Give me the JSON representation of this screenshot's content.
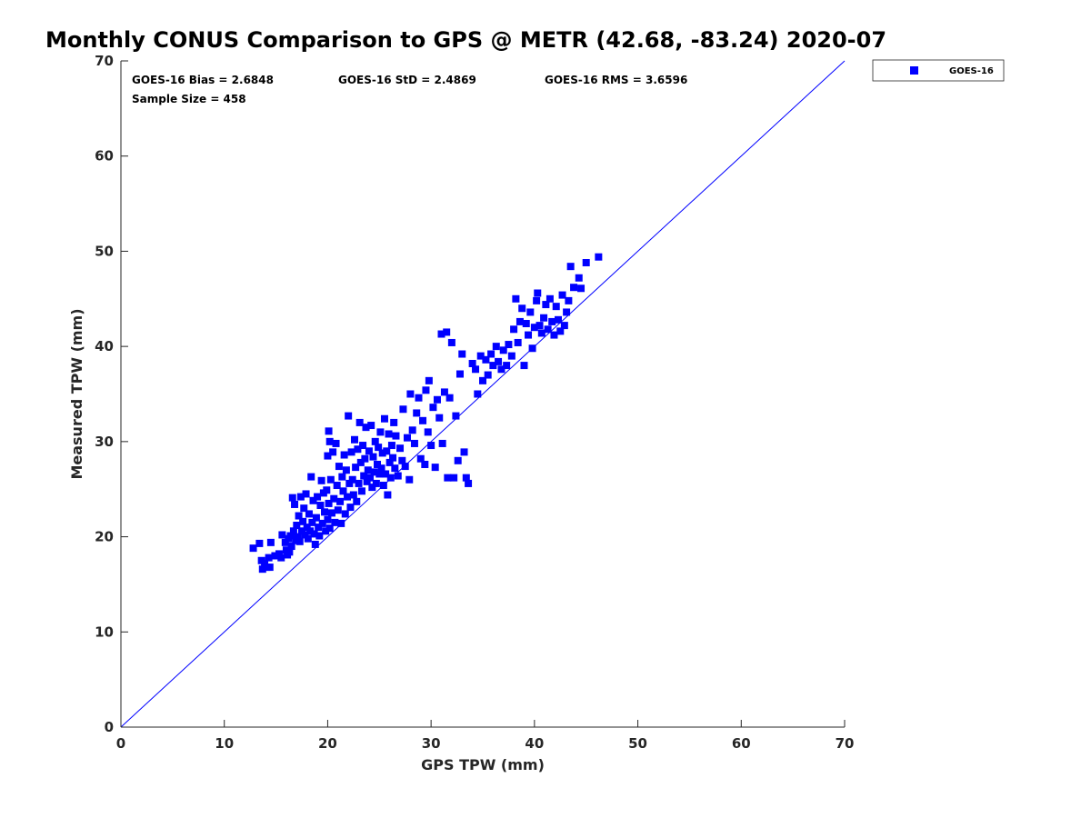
{
  "chart_data": {
    "type": "scatter",
    "title": "Monthly CONUS Comparison to GPS @ METR (42.68, -83.24) 2020-07",
    "xlabel": "GPS TPW (mm)",
    "ylabel": "Measured TPW (mm)",
    "xlim": [
      0,
      70
    ],
    "ylim": [
      0,
      70
    ],
    "xticks": [
      0,
      10,
      20,
      30,
      40,
      50,
      60,
      70
    ],
    "yticks": [
      0,
      10,
      20,
      30,
      40,
      50,
      60,
      70
    ],
    "grid": false,
    "legend_position": "outside-top-right",
    "reference_line": {
      "x": [
        0,
        70
      ],
      "y": [
        0,
        70
      ],
      "color": "#0000ff"
    },
    "annotations": {
      "bias": "GOES-16 Bias = 2.6848",
      "std": "GOES-16 StD = 2.4869",
      "rms": "GOES-16 RMS = 3.6596",
      "sample": "Sample Size = 458"
    },
    "series": [
      {
        "name": "GOES-16",
        "color": "#0000ff",
        "marker": "square",
        "points": [
          [
            12.8,
            18.8
          ],
          [
            13.4,
            19.3
          ],
          [
            13.6,
            17.5
          ],
          [
            13.7,
            16.6
          ],
          [
            13.9,
            17.2
          ],
          [
            14.1,
            16.8
          ],
          [
            14.3,
            17.8
          ],
          [
            14.5,
            19.4
          ],
          [
            14.4,
            16.8
          ],
          [
            14.9,
            18.0
          ],
          [
            15.3,
            18.2
          ],
          [
            15.5,
            17.8
          ],
          [
            15.6,
            20.2
          ],
          [
            15.9,
            19.4
          ],
          [
            16.0,
            18.6
          ],
          [
            16.1,
            18.1
          ],
          [
            16.2,
            19.8
          ],
          [
            16.3,
            18.4
          ],
          [
            16.4,
            20.1
          ],
          [
            16.5,
            19.0
          ],
          [
            16.6,
            24.1
          ],
          [
            16.7,
            20.6
          ],
          [
            16.8,
            23.4
          ],
          [
            16.9,
            19.6
          ],
          [
            17.0,
            21.2
          ],
          [
            17.1,
            20.0
          ],
          [
            17.2,
            22.2
          ],
          [
            17.3,
            19.5
          ],
          [
            17.4,
            24.2
          ],
          [
            17.5,
            20.6
          ],
          [
            17.6,
            21.6
          ],
          [
            17.7,
            23.0
          ],
          [
            17.8,
            20.2
          ],
          [
            17.9,
            24.5
          ],
          [
            18.0,
            21.0
          ],
          [
            18.1,
            19.8
          ],
          [
            18.2,
            22.4
          ],
          [
            18.3,
            20.6
          ],
          [
            18.4,
            26.3
          ],
          [
            18.5,
            21.5
          ],
          [
            18.6,
            23.8
          ],
          [
            18.7,
            20.3
          ],
          [
            18.8,
            19.2
          ],
          [
            18.9,
            22.0
          ],
          [
            19.0,
            24.2
          ],
          [
            19.1,
            21.0
          ],
          [
            19.2,
            20.1
          ],
          [
            19.3,
            23.3
          ],
          [
            19.4,
            25.9
          ],
          [
            19.5,
            21.4
          ],
          [
            19.6,
            24.6
          ],
          [
            19.7,
            22.6
          ],
          [
            19.8,
            20.6
          ],
          [
            19.9,
            24.9
          ],
          [
            20.0,
            21.8
          ],
          [
            20.0,
            28.5
          ],
          [
            20.1,
            23.5
          ],
          [
            20.1,
            31.1
          ],
          [
            20.2,
            20.9
          ],
          [
            20.2,
            30.0
          ],
          [
            20.3,
            26.0
          ],
          [
            20.4,
            22.5
          ],
          [
            20.5,
            28.9
          ],
          [
            20.6,
            24.0
          ],
          [
            20.7,
            21.5
          ],
          [
            20.8,
            29.8
          ],
          [
            20.9,
            25.4
          ],
          [
            21.0,
            22.8
          ],
          [
            21.1,
            27.4
          ],
          [
            21.2,
            23.7
          ],
          [
            21.3,
            21.4
          ],
          [
            21.4,
            26.3
          ],
          [
            21.5,
            24.8
          ],
          [
            21.6,
            28.6
          ],
          [
            21.7,
            22.4
          ],
          [
            21.8,
            27.0
          ],
          [
            21.9,
            24.2
          ],
          [
            22.0,
            32.7
          ],
          [
            22.1,
            25.6
          ],
          [
            22.2,
            23.1
          ],
          [
            22.3,
            28.9
          ],
          [
            22.4,
            26.0
          ],
          [
            22.5,
            24.4
          ],
          [
            22.6,
            30.2
          ],
          [
            22.7,
            27.3
          ],
          [
            22.8,
            23.7
          ],
          [
            22.9,
            29.2
          ],
          [
            23.0,
            25.6
          ],
          [
            23.1,
            32.0
          ],
          [
            23.2,
            27.8
          ],
          [
            23.3,
            24.8
          ],
          [
            23.4,
            29.6
          ],
          [
            23.5,
            26.4
          ],
          [
            23.6,
            28.2
          ],
          [
            23.7,
            31.5
          ],
          [
            23.8,
            25.8
          ],
          [
            23.9,
            27.0
          ],
          [
            24.0,
            29.0
          ],
          [
            24.1,
            26.2
          ],
          [
            24.2,
            31.7
          ],
          [
            24.3,
            25.2
          ],
          [
            24.4,
            28.4
          ],
          [
            24.5,
            26.8
          ],
          [
            24.6,
            30.0
          ],
          [
            24.7,
            25.6
          ],
          [
            24.8,
            27.6
          ],
          [
            24.9,
            29.4
          ],
          [
            25.0,
            26.6
          ],
          [
            25.1,
            31.0
          ],
          [
            25.2,
            27.2
          ],
          [
            25.3,
            28.8
          ],
          [
            25.4,
            25.4
          ],
          [
            25.5,
            32.4
          ],
          [
            25.6,
            26.6
          ],
          [
            25.7,
            29.0
          ],
          [
            25.8,
            24.4
          ],
          [
            25.9,
            30.8
          ],
          [
            26.0,
            27.8
          ],
          [
            26.1,
            26.2
          ],
          [
            26.2,
            29.6
          ],
          [
            26.3,
            28.3
          ],
          [
            26.4,
            32.0
          ],
          [
            26.5,
            27.2
          ],
          [
            26.6,
            30.6
          ],
          [
            26.8,
            26.4
          ],
          [
            27.0,
            29.3
          ],
          [
            27.2,
            28.0
          ],
          [
            27.3,
            33.4
          ],
          [
            27.5,
            27.4
          ],
          [
            27.7,
            30.4
          ],
          [
            27.9,
            26.0
          ],
          [
            28.0,
            35.0
          ],
          [
            28.2,
            31.2
          ],
          [
            28.4,
            29.8
          ],
          [
            28.6,
            33.0
          ],
          [
            28.8,
            34.6
          ],
          [
            29.0,
            28.2
          ],
          [
            29.2,
            32.2
          ],
          [
            29.4,
            27.6
          ],
          [
            29.5,
            35.4
          ],
          [
            29.7,
            31.0
          ],
          [
            29.8,
            36.4
          ],
          [
            30.0,
            29.6
          ],
          [
            30.2,
            33.6
          ],
          [
            30.4,
            27.3
          ],
          [
            30.6,
            34.4
          ],
          [
            30.8,
            32.5
          ],
          [
            31.0,
            41.3
          ],
          [
            31.1,
            29.8
          ],
          [
            31.3,
            35.2
          ],
          [
            31.5,
            41.5
          ],
          [
            31.6,
            26.2
          ],
          [
            31.8,
            34.6
          ],
          [
            32.0,
            40.4
          ],
          [
            32.2,
            26.2
          ],
          [
            32.4,
            32.7
          ],
          [
            32.6,
            28.0
          ],
          [
            32.8,
            37.1
          ],
          [
            33.0,
            39.2
          ],
          [
            33.2,
            28.9
          ],
          [
            33.4,
            26.2
          ],
          [
            33.6,
            25.6
          ],
          [
            34.0,
            38.2
          ],
          [
            34.3,
            37.6
          ],
          [
            34.5,
            35.0
          ],
          [
            34.8,
            39.0
          ],
          [
            35.0,
            36.4
          ],
          [
            35.3,
            38.6
          ],
          [
            35.5,
            37.0
          ],
          [
            35.8,
            39.2
          ],
          [
            36.0,
            38.0
          ],
          [
            36.3,
            40.0
          ],
          [
            36.5,
            38.4
          ],
          [
            36.8,
            37.6
          ],
          [
            37.0,
            39.6
          ],
          [
            37.3,
            38.0
          ],
          [
            37.5,
            40.2
          ],
          [
            37.8,
            39.0
          ],
          [
            38.0,
            41.8
          ],
          [
            38.2,
            45.0
          ],
          [
            38.4,
            40.4
          ],
          [
            38.6,
            42.6
          ],
          [
            38.8,
            44.0
          ],
          [
            39.0,
            38.0
          ],
          [
            39.2,
            42.4
          ],
          [
            39.4,
            41.2
          ],
          [
            39.6,
            43.6
          ],
          [
            39.8,
            39.8
          ],
          [
            40.0,
            42.0
          ],
          [
            40.2,
            44.8
          ],
          [
            40.3,
            45.6
          ],
          [
            40.5,
            42.2
          ],
          [
            40.7,
            41.4
          ],
          [
            40.9,
            43.0
          ],
          [
            41.1,
            44.4
          ],
          [
            41.3,
            41.8
          ],
          [
            41.5,
            45.0
          ],
          [
            41.7,
            42.6
          ],
          [
            41.9,
            41.2
          ],
          [
            42.1,
            44.2
          ],
          [
            42.3,
            42.8
          ],
          [
            42.5,
            41.6
          ],
          [
            42.7,
            45.4
          ],
          [
            42.9,
            42.2
          ],
          [
            43.1,
            43.6
          ],
          [
            43.3,
            44.8
          ],
          [
            43.5,
            48.4
          ],
          [
            43.8,
            46.2
          ],
          [
            44.3,
            47.2
          ],
          [
            44.5,
            46.1
          ],
          [
            45.0,
            48.8
          ],
          [
            46.2,
            49.4
          ]
        ]
      }
    ]
  }
}
